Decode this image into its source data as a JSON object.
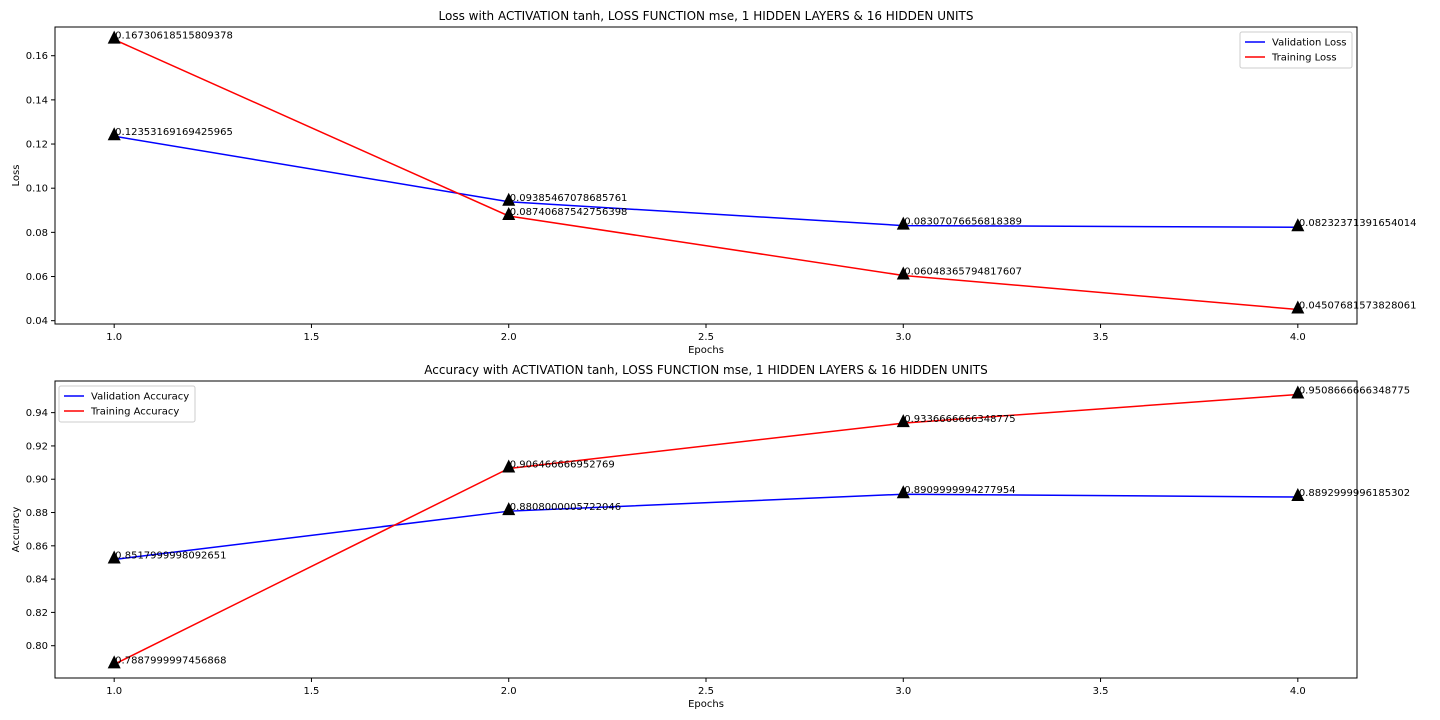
{
  "chart_data": [
    {
      "type": "line",
      "title": "Loss with ACTIVATION tanh, LOSS FUNCTION mse, 1 HIDDEN LAYERS & 16 HIDDEN UNITS",
      "xlabel": "Epochs",
      "ylabel": "Loss",
      "x": [
        1.0,
        2.0,
        3.0,
        4.0
      ],
      "xlim": [
        0.85,
        4.15
      ],
      "ylim": [
        0.0385,
        0.173
      ],
      "xticks": [
        1.0,
        1.5,
        2.0,
        2.5,
        3.0,
        3.5,
        4.0
      ],
      "xtick_labels": [
        "1.0",
        "1.5",
        "2.0",
        "2.5",
        "3.0",
        "3.5",
        "4.0"
      ],
      "yticks": [
        0.04,
        0.06,
        0.08,
        0.1,
        0.12,
        0.14,
        0.16
      ],
      "ytick_labels": [
        "0.04",
        "0.06",
        "0.08",
        "0.10",
        "0.12",
        "0.14",
        "0.16"
      ],
      "grid": false,
      "legend_position": "upper right",
      "series": [
        {
          "name": "Validation Loss",
          "color": "#0000ff",
          "values": [
            0.12353169169425965,
            0.09385467078685761,
            0.08307076656818389,
            0.08232371391654014
          ],
          "labels": [
            "0.12353169169425965",
            "0.09385467078685761",
            "0.08307076656818389",
            "0.08232371391654014"
          ]
        },
        {
          "name": "Training Loss",
          "color": "#ff0000",
          "values": [
            0.16730618515809378,
            0.08740687542756398,
            0.06048365794817607,
            0.04507681573828061
          ],
          "labels": [
            "0.16730618515809378",
            "0.08740687542756398",
            "0.06048365794817607",
            "0.04507681573828061"
          ]
        }
      ],
      "marker": "black-triangle"
    },
    {
      "type": "line",
      "title": "Accuracy with ACTIVATION tanh, LOSS FUNCTION mse, 1 HIDDEN LAYERS & 16 HIDDEN UNITS",
      "xlabel": "Epochs",
      "ylabel": "Accuracy",
      "x": [
        1.0,
        2.0,
        3.0,
        4.0
      ],
      "xlim": [
        0.85,
        4.15
      ],
      "ylim": [
        0.7806,
        0.959
      ],
      "xticks": [
        1.0,
        1.5,
        2.0,
        2.5,
        3.0,
        3.5,
        4.0
      ],
      "xtick_labels": [
        "1.0",
        "1.5",
        "2.0",
        "2.5",
        "3.0",
        "3.5",
        "4.0"
      ],
      "yticks": [
        0.8,
        0.82,
        0.84,
        0.86,
        0.88,
        0.9,
        0.92,
        0.94
      ],
      "ytick_labels": [
        "0.80",
        "0.82",
        "0.84",
        "0.86",
        "0.88",
        "0.90",
        "0.92",
        "0.94"
      ],
      "grid": false,
      "legend_position": "upper left",
      "series": [
        {
          "name": "Validation Accuracy",
          "color": "#0000ff",
          "values": [
            0.8517999998092651,
            0.8808000005722046,
            0.8909999994277954,
            0.8892999996185302
          ],
          "labels": [
            "0.8517999998092651",
            "0.8808000005722046",
            "0.8909999994277954",
            "0.8892999996185302"
          ]
        },
        {
          "name": "Training Accuracy",
          "color": "#ff0000",
          "values": [
            0.7887999997456868,
            0.906466666952769,
            0.9336666666348775,
            0.9508666666348775
          ],
          "labels": [
            "0.7887999997456868",
            "0.906466666952769",
            "0.9336666666348775",
            "0.9508666666348775"
          ]
        }
      ],
      "marker": "black-triangle"
    }
  ]
}
